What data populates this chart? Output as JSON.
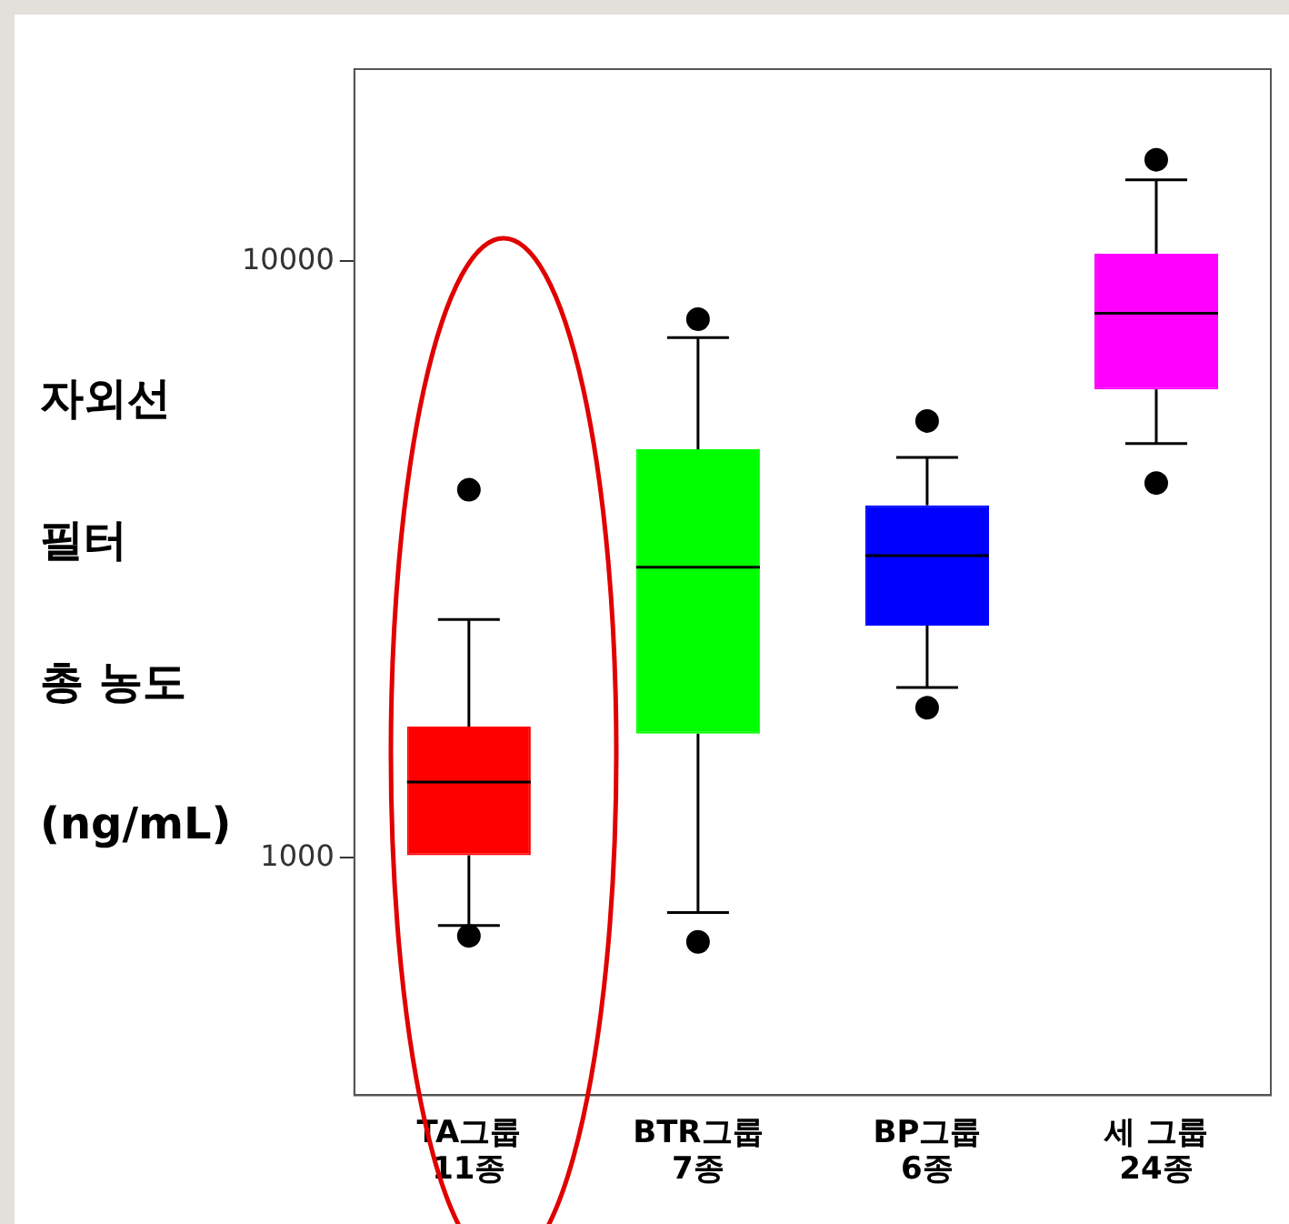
{
  "chart_data": {
    "type": "box",
    "ylabel": "자외선\n필터\n총 농도\n(ng/mL)",
    "categories": [
      "TA그룹\n11종",
      "BTR그룹\n7종",
      "BP그룹\n6종",
      "세 그룹\n24종"
    ],
    "colors": [
      "#ff0000",
      "#00ff00",
      "#0000ff",
      "#ff00ff"
    ],
    "boxes": [
      {
        "low": 770,
        "q1": 1010,
        "median": 1340,
        "q3": 1660,
        "high": 2510,
        "outliers": [
          4140,
          740
        ]
      },
      {
        "low": 810,
        "q1": 1615,
        "median": 3070,
        "q3": 4840,
        "high": 7450,
        "outliers": [
          8000,
          723
        ]
      },
      {
        "low": 1930,
        "q1": 2450,
        "median": 3210,
        "q3": 3900,
        "high": 4690,
        "outliers": [
          5400,
          1785
        ]
      },
      {
        "low": 4950,
        "q1": 6100,
        "median": 8180,
        "q3": 10300,
        "high": 13700,
        "outliers": [
          14800,
          4250
        ]
      }
    ],
    "log": true,
    "ylim": [
      400,
      21000
    ],
    "yticks": [
      1000,
      10000
    ],
    "grid": false,
    "legend": false
  }
}
